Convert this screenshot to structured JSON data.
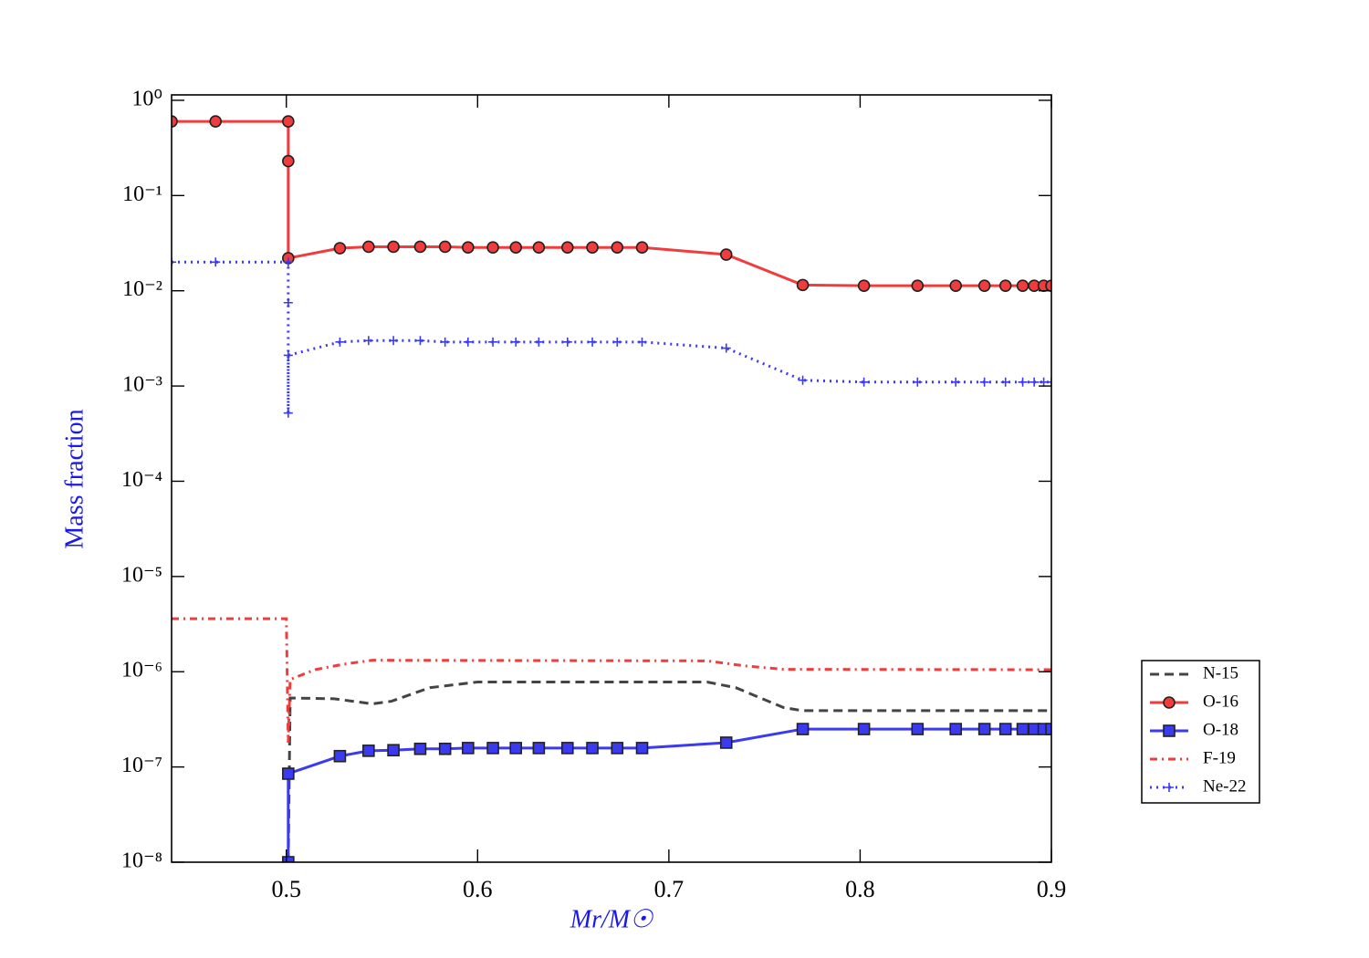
{
  "chart_data": {
    "type": "line",
    "xlabel": "Mr/M☉",
    "ylabel": "Mass fraction",
    "xlim": [
      0.44,
      0.9
    ],
    "xticks": [
      0.5,
      0.6,
      0.7,
      0.8,
      0.9
    ],
    "ylim": [
      1e-08,
      1.14
    ],
    "yscale": "log",
    "yticks": [
      {
        "value": 1,
        "label": "10⁰"
      },
      {
        "value": 0.1,
        "label": "10⁻¹"
      },
      {
        "value": 0.01,
        "label": "10⁻²"
      },
      {
        "value": 0.001,
        "label": "10⁻³"
      },
      {
        "value": 0.0001,
        "label": "10⁻⁴"
      },
      {
        "value": 1e-05,
        "label": "10⁻⁵"
      },
      {
        "value": 1e-06,
        "label": "10⁻⁶"
      },
      {
        "value": 1e-07,
        "label": "10⁻⁷"
      },
      {
        "value": 1e-08,
        "label": "10⁻⁸"
      }
    ],
    "legend": "outside-right",
    "series": [
      {
        "name": "N-15",
        "color": "#444444",
        "linestyle": "dashed",
        "marker": null,
        "x": [
          0.501,
          0.502,
          0.525,
          0.545,
          0.555,
          0.575,
          0.6,
          0.72,
          0.735,
          0.76,
          0.77,
          0.9
        ],
        "values": [
          1e-08,
          5.3e-07,
          5.2e-07,
          4.6e-07,
          4.9e-07,
          6.8e-07,
          7.8e-07,
          7.8e-07,
          6.8e-07,
          4.2e-07,
          3.9e-07,
          3.9e-07
        ]
      },
      {
        "name": "O-16",
        "color": "#f03c3c",
        "linestyle": "solid",
        "marker": "circle",
        "x": [
          0.44,
          0.463,
          0.501,
          0.501,
          0.501,
          0.528,
          0.543,
          0.556,
          0.57,
          0.583,
          0.595,
          0.608,
          0.62,
          0.632,
          0.647,
          0.66,
          0.673,
          0.686,
          0.73,
          0.77,
          0.802,
          0.83,
          0.85,
          0.865,
          0.876,
          0.885,
          0.891,
          0.896,
          0.9
        ],
        "values": [
          0.6,
          0.6,
          0.6,
          0.23,
          0.022,
          0.028,
          0.029,
          0.029,
          0.029,
          0.029,
          0.0285,
          0.0285,
          0.0285,
          0.0285,
          0.0285,
          0.0285,
          0.0285,
          0.0285,
          0.024,
          0.0115,
          0.0113,
          0.0113,
          0.0113,
          0.0113,
          0.0113,
          0.0113,
          0.0113,
          0.0113,
          0.0113
        ]
      },
      {
        "name": "O-18",
        "color": "#3a3af0",
        "linestyle": "solid",
        "marker": "square",
        "x": [
          0.501,
          0.501,
          0.528,
          0.543,
          0.556,
          0.57,
          0.583,
          0.595,
          0.608,
          0.62,
          0.632,
          0.647,
          0.66,
          0.673,
          0.686,
          0.73,
          0.77,
          0.802,
          0.83,
          0.85,
          0.865,
          0.876,
          0.885,
          0.891,
          0.896,
          0.9
        ],
        "values": [
          1e-08,
          8.5e-08,
          1.3e-07,
          1.48e-07,
          1.5e-07,
          1.55e-07,
          1.55e-07,
          1.58e-07,
          1.58e-07,
          1.58e-07,
          1.58e-07,
          1.58e-07,
          1.58e-07,
          1.58e-07,
          1.58e-07,
          1.8e-07,
          2.5e-07,
          2.5e-07,
          2.5e-07,
          2.5e-07,
          2.5e-07,
          2.5e-07,
          2.5e-07,
          2.5e-07,
          2.5e-07,
          2.5e-07
        ]
      },
      {
        "name": "F-19",
        "color": "#f03c3c",
        "linestyle": "dashdot",
        "marker": null,
        "x": [
          0.44,
          0.5,
          0.501,
          0.502,
          0.515,
          0.53,
          0.545,
          0.72,
          0.74,
          0.76,
          0.9
        ],
        "values": [
          3.6e-06,
          3.6e-06,
          1.8e-07,
          8.3e-07,
          1.05e-06,
          1.2e-06,
          1.32e-06,
          1.3e-06,
          1.15e-06,
          1.06e-06,
          1.05e-06
        ]
      },
      {
        "name": "Ne-22",
        "color": "#3a3af0",
        "linestyle": "dotted",
        "marker": "plus",
        "x": [
          0.44,
          0.463,
          0.501,
          0.501,
          0.501,
          0.501,
          0.528,
          0.543,
          0.556,
          0.57,
          0.583,
          0.595,
          0.608,
          0.62,
          0.632,
          0.647,
          0.66,
          0.673,
          0.686,
          0.73,
          0.77,
          0.802,
          0.83,
          0.85,
          0.865,
          0.876,
          0.885,
          0.891,
          0.896,
          0.9
        ],
        "values": [
          0.02,
          0.02,
          0.02,
          0.0075,
          0.00052,
          0.0021,
          0.0029,
          0.003,
          0.003,
          0.003,
          0.0029,
          0.0029,
          0.0029,
          0.0029,
          0.0029,
          0.0029,
          0.0029,
          0.0029,
          0.0029,
          0.0025,
          0.00115,
          0.0011,
          0.0011,
          0.0011,
          0.0011,
          0.0011,
          0.0011,
          0.0011,
          0.0011,
          0.0011
        ]
      }
    ]
  }
}
